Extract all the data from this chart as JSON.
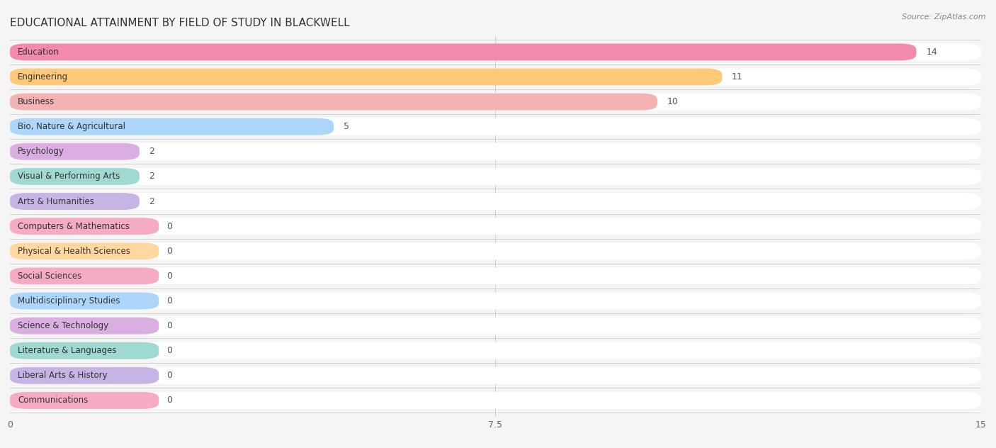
{
  "title": "EDUCATIONAL ATTAINMENT BY FIELD OF STUDY IN BLACKWELL",
  "source": "Source: ZipAtlas.com",
  "categories": [
    "Education",
    "Engineering",
    "Business",
    "Bio, Nature & Agricultural",
    "Psychology",
    "Visual & Performing Arts",
    "Arts & Humanities",
    "Computers & Mathematics",
    "Physical & Health Sciences",
    "Social Sciences",
    "Multidisciplinary Studies",
    "Science & Technology",
    "Literature & Languages",
    "Liberal Arts & History",
    "Communications"
  ],
  "values": [
    14,
    11,
    10,
    5,
    2,
    2,
    2,
    0,
    0,
    0,
    0,
    0,
    0,
    0,
    0
  ],
  "bar_colors": [
    "#F06292",
    "#FFB74D",
    "#EF9A9A",
    "#90CAF9",
    "#CE93D8",
    "#80CBC4",
    "#B39DDB",
    "#F48FB1",
    "#FFCC80",
    "#F48FB1",
    "#90CAF9",
    "#CE93D8",
    "#80CBC4",
    "#B39DDB",
    "#F48FB1"
  ],
  "xlim": [
    0,
    15
  ],
  "xticks": [
    0,
    7.5,
    15
  ],
  "background_color": "#f5f5f5",
  "title_fontsize": 11,
  "label_fontsize": 8.5,
  "value_fontsize": 9
}
